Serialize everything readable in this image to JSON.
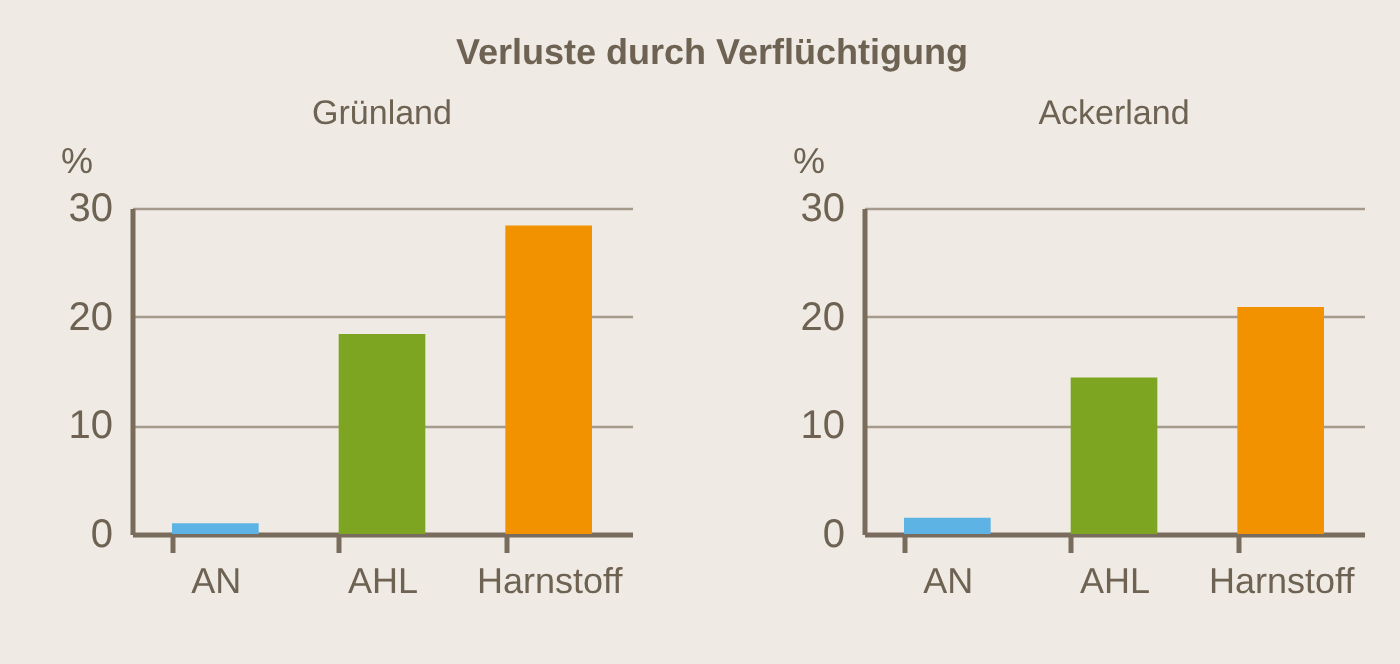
{
  "chart_data": [
    {
      "type": "bar",
      "title": "Verluste durch Verflüchtigung",
      "subtitle": "Grünland",
      "ylabel": "%",
      "categories": [
        "AN",
        "AHL",
        "Harnstoff"
      ],
      "values": [
        1.0,
        18.4,
        28.4
      ],
      "colors": [
        "#5db3e4",
        "#7ea521",
        "#f39200"
      ],
      "ylim": [
        0,
        30
      ],
      "yticks": [
        0,
        10,
        20,
        30
      ],
      "grid": "y"
    },
    {
      "type": "bar",
      "subtitle": "Ackerland",
      "ylabel": "%",
      "categories": [
        "AN",
        "AHL",
        "Harnstoff"
      ],
      "values": [
        1.5,
        14.4,
        20.9
      ],
      "colors": [
        "#5db3e4",
        "#7ea521",
        "#f39200"
      ],
      "ylim": [
        0,
        30
      ],
      "yticks": [
        0,
        10,
        20,
        30
      ],
      "grid": "y"
    }
  ]
}
